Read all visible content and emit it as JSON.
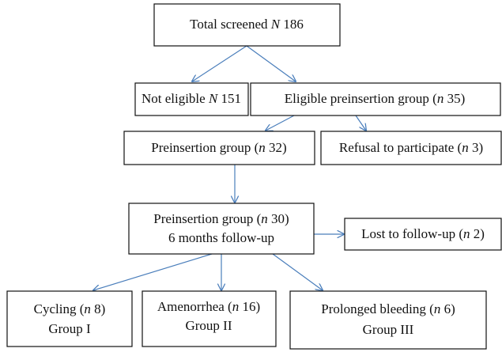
{
  "nodes": [
    {
      "lines": [
        [
          "Total screened ",
          "N",
          " 186"
        ]
      ]
    },
    {
      "lines": [
        [
          "Not eligible ",
          "N",
          " 151"
        ]
      ]
    },
    {
      "lines": [
        [
          "Eligible preinsertion group (",
          "n",
          " 35)"
        ]
      ]
    },
    {
      "lines": [
        [
          "Preinsertion group (",
          "n",
          " 32)"
        ]
      ]
    },
    {
      "lines": [
        [
          "Refusal to participate (",
          "n",
          " 3)"
        ]
      ]
    },
    {
      "lines": [
        [
          "Preinsertion group (",
          "n",
          " 30)"
        ],
        [
          "6 months follow-up"
        ]
      ]
    },
    {
      "lines": [
        [
          "Lost to follow-up (",
          "n",
          " 2)"
        ]
      ]
    },
    {
      "lines": [
        [
          "Cycling (",
          "n",
          " 8)"
        ],
        [
          "Group I"
        ]
      ]
    },
    {
      "lines": [
        [
          "Amenorrhea (",
          "n",
          " 16)"
        ],
        [
          "Group II"
        ]
      ]
    },
    {
      "lines": [
        [
          "Prolonged bleeding (",
          "n",
          " 6)"
        ],
        [
          "Group III"
        ]
      ]
    }
  ]
}
